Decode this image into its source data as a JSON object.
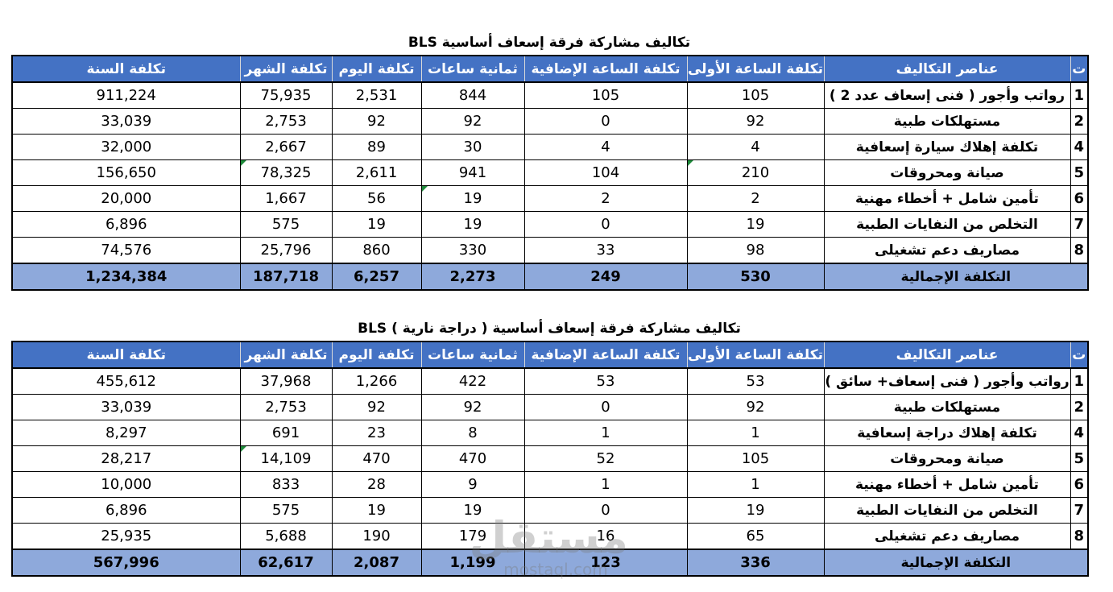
{
  "table1": {
    "title": "تكاليف مشاركة فرقة إسعاف أساسية BLS",
    "headers": [
      "ت",
      "عناصر التكاليف",
      "تكلفة الساعة الأولى",
      "تكلفة الساعة الإضافية",
      "ثمانية ساعات",
      "تكلفة اليوم",
      "تكلفة الشهر",
      "تكلفة السنة"
    ],
    "rows": [
      {
        "idx": "1",
        "label": "رواتب وأجور ( فنى إسعاف عدد 2 )",
        "first_hour": "105",
        "extra_hour": "105",
        "eight_hours": "844",
        "day": "2,531",
        "month": "75,935",
        "year": "911,224"
      },
      {
        "idx": "2",
        "label": "مستهلكات طبية",
        "first_hour": "92",
        "extra_hour": "0",
        "eight_hours": "92",
        "day": "92",
        "month": "2,753",
        "year": "33,039"
      },
      {
        "idx": "4",
        "label": "تكلفة إهلاك سيارة إسعافية",
        "first_hour": "4",
        "extra_hour": "4",
        "eight_hours": "30",
        "day": "89",
        "month": "2,667",
        "year": "32,000"
      },
      {
        "idx": "5",
        "label": "صيانة ومحروقات",
        "first_hour": "210",
        "extra_hour": "104",
        "eight_hours": "941",
        "day": "2,611",
        "month": "78,325",
        "year": "156,650"
      },
      {
        "idx": "6",
        "label": "تأمين شامل + أخطاء مهنية",
        "first_hour": "2",
        "extra_hour": "2",
        "eight_hours": "19",
        "day": "56",
        "month": "1,667",
        "year": "20,000"
      },
      {
        "idx": "7",
        "label": "التخلص من النفايات الطبية",
        "first_hour": "19",
        "extra_hour": "0",
        "eight_hours": "19",
        "day": "19",
        "month": "575",
        "year": "6,896"
      },
      {
        "idx": "8",
        "label": "مصاريف دعم تشغيلى",
        "first_hour": "98",
        "extra_hour": "33",
        "eight_hours": "330",
        "day": "860",
        "month": "25,796",
        "year": "74,576"
      }
    ],
    "total": {
      "label": "التكلفة الإجمالية",
      "first_hour": "530",
      "extra_hour": "249",
      "eight_hours": "2,273",
      "day": "6,257",
      "month": "187,718",
      "year": "1,234,384"
    }
  },
  "table2": {
    "title": "تكاليف مشاركة فرقة إسعاف أساسية ( دراجة نارية )   BLS",
    "headers": [
      "ت",
      "عناصر التكاليف",
      "تكلفة الساعة الأولى",
      "تكلفة الساعة الإضافية",
      "ثمانية ساعات",
      "تكلفة اليوم",
      "تكلفة الشهر",
      "تكلفة السنة"
    ],
    "rows": [
      {
        "idx": "1",
        "label": "رواتب وأجور ( فنى إسعاف+ سائق )",
        "first_hour": "53",
        "extra_hour": "53",
        "eight_hours": "422",
        "day": "1,266",
        "month": "37,968",
        "year": "455,612"
      },
      {
        "idx": "2",
        "label": "مستهلكات طبية",
        "first_hour": "92",
        "extra_hour": "0",
        "eight_hours": "92",
        "day": "92",
        "month": "2,753",
        "year": "33,039"
      },
      {
        "idx": "4",
        "label": "تكلفة إهلاك دراجة إسعافية",
        "first_hour": "1",
        "extra_hour": "1",
        "eight_hours": "8",
        "day": "23",
        "month": "691",
        "year": "8,297"
      },
      {
        "idx": "5",
        "label": "صيانة ومحروقات",
        "first_hour": "105",
        "extra_hour": "52",
        "eight_hours": "470",
        "day": "470",
        "month": "14,109",
        "year": "28,217"
      },
      {
        "idx": "6",
        "label": "تأمين شامل + أخطاء مهنية",
        "first_hour": "1",
        "extra_hour": "1",
        "eight_hours": "9",
        "day": "28",
        "month": "833",
        "year": "10,000"
      },
      {
        "idx": "7",
        "label": "التخلص من النفايات الطبية",
        "first_hour": "19",
        "extra_hour": "0",
        "eight_hours": "19",
        "day": "19",
        "month": "575",
        "year": "6,896"
      },
      {
        "idx": "8",
        "label": "مصاريف دعم تشغيلى",
        "first_hour": "65",
        "extra_hour": "16",
        "eight_hours": "179",
        "day": "190",
        "month": "5,688",
        "year": "25,935"
      }
    ],
    "total": {
      "label": "التكلفة الإجمالية",
      "first_hour": "336",
      "extra_hour": "123",
      "eight_hours": "1,199",
      "day": "2,087",
      "month": "62,617",
      "year": "567,996"
    }
  },
  "watermark": {
    "arabic": "مستقل",
    "latin": "mostaql.com"
  },
  "colors": {
    "header_bg": "#4472c4",
    "total_bg": "#8ea9db",
    "comment_marker": "#1e8a3a"
  }
}
